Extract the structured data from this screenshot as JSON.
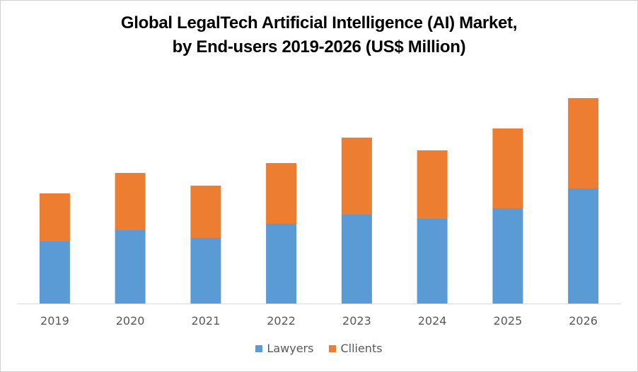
{
  "chart_data": {
    "type": "bar",
    "stacked": true,
    "title_lines": [
      "Global LegalTech Artificial Intelligence (AI) Market,",
      "by End-users 2019-2026 (US$ Million)"
    ],
    "xlabel": "",
    "ylabel": "",
    "y_axis_visible": false,
    "grid": false,
    "ylim": [
      0,
      300
    ],
    "categories": [
      "2019",
      "2020",
      "2021",
      "2022",
      "2023",
      "2024",
      "2025",
      "2026"
    ],
    "series": [
      {
        "name": "Lawyers",
        "color": "#5B9BD5",
        "values": [
          88,
          104,
          93,
          113,
          126,
          120,
          135,
          163
        ]
      },
      {
        "name": "Cllients",
        "color": "#ED7D31",
        "values": [
          68,
          81,
          74,
          86,
          109,
          97,
          113,
          128
        ]
      }
    ],
    "legend_position": "bottom",
    "value_note": "relative units estimated from bar heights; no y-axis shown"
  }
}
